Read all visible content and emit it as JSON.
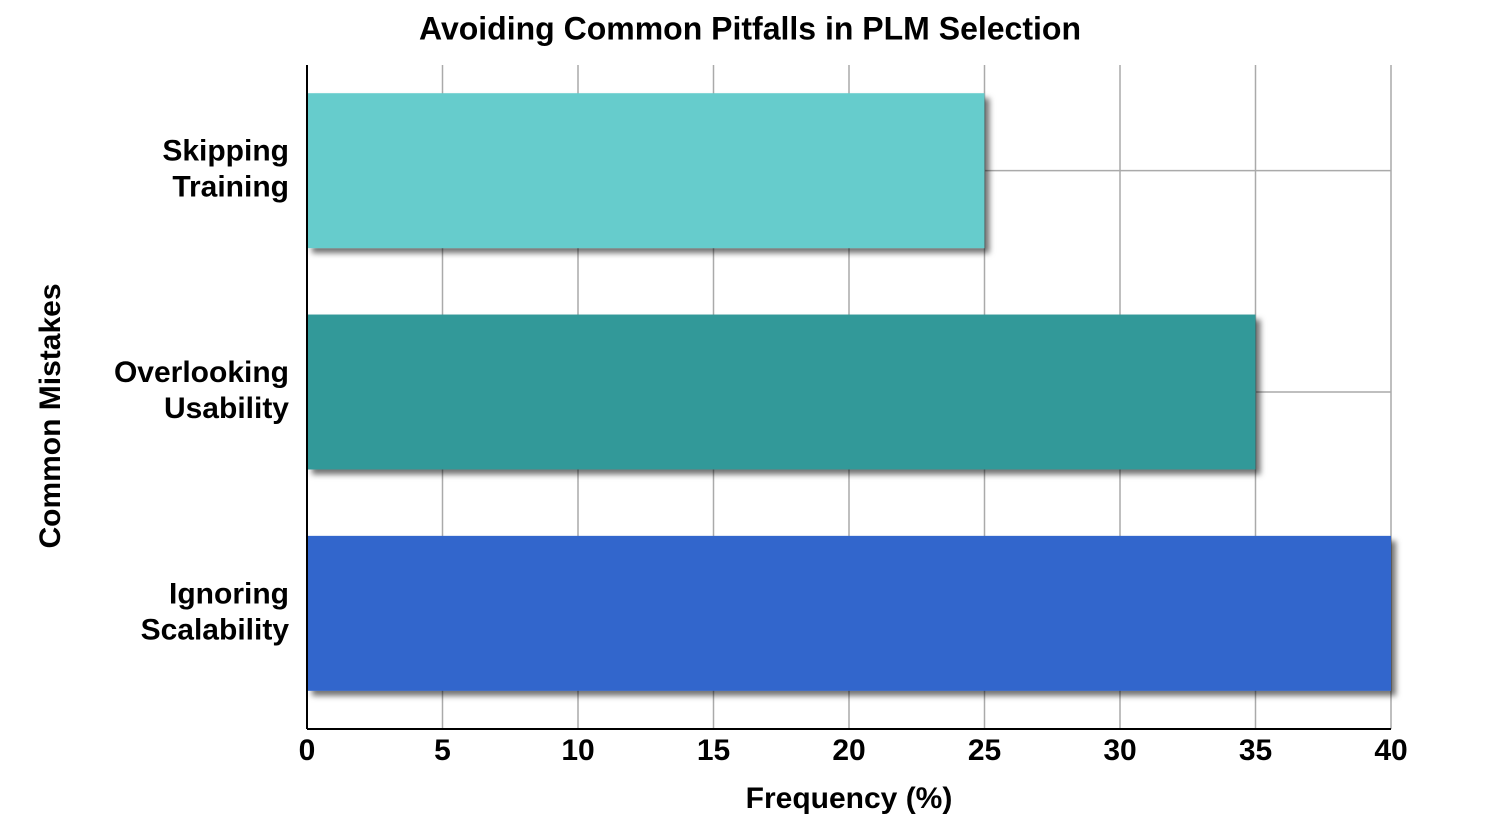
{
  "chart_data": {
    "type": "barh",
    "title": "Avoiding Common Pitfalls in PLM Selection",
    "x_label": "Frequency (%)",
    "y_label": "Common Mistakes",
    "categories": [
      "Skipping Training",
      "Overlooking Usability",
      "Ignoring Scalability"
    ],
    "values": [
      25,
      35,
      40
    ],
    "colors": [
      "#66cccc",
      "#339999",
      "#3366cc"
    ],
    "xlim": [
      0,
      40
    ],
    "xticks": [
      0,
      5,
      10,
      15,
      20,
      25,
      30,
      35,
      40
    ],
    "grid": true
  }
}
